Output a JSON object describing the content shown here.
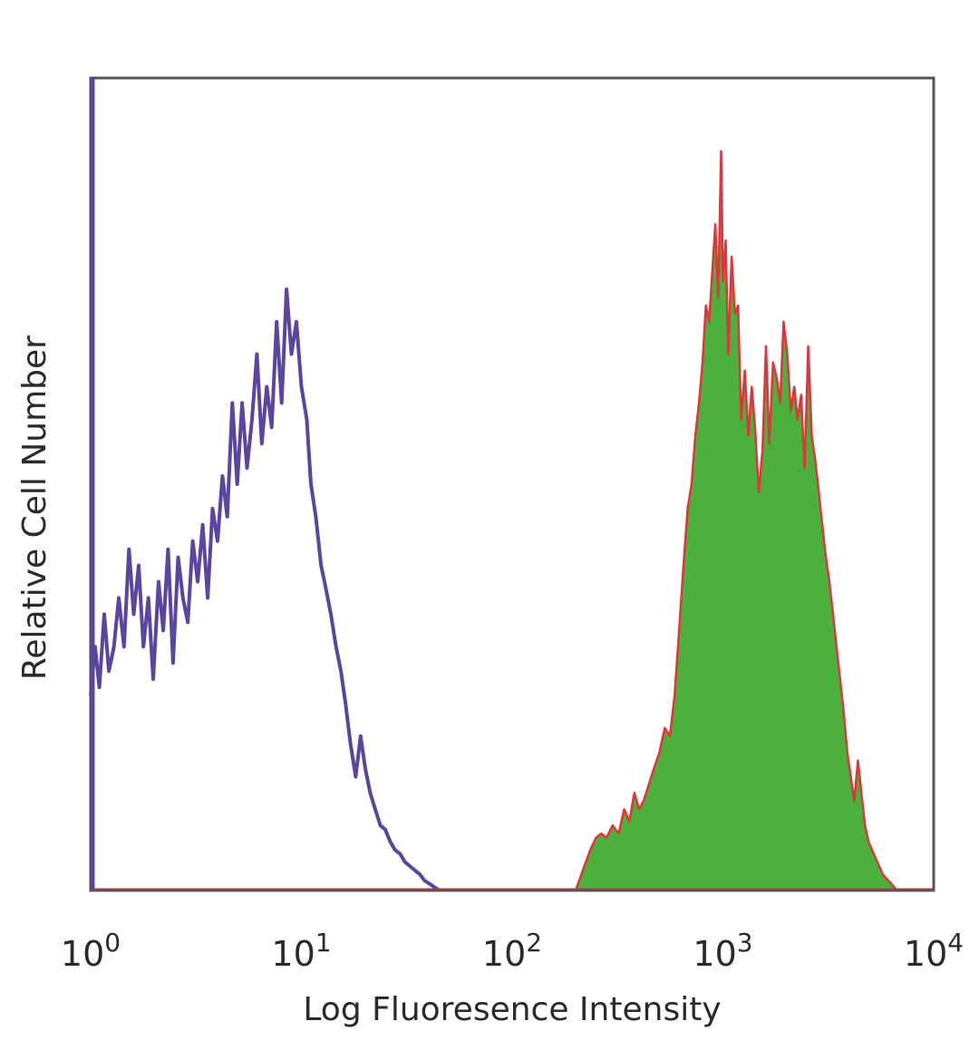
{
  "chart_data": {
    "type": "area",
    "title": "",
    "xlabel": "Log Fluoresence Intensity",
    "ylabel": "Relative Cell Number",
    "x_scale": "log",
    "xlim": [
      1,
      10000
    ],
    "ylim": [
      0,
      1
    ],
    "grid": false,
    "legend": "none",
    "x_ticks": [
      {
        "value": 1,
        "base": "10",
        "exp": "0"
      },
      {
        "value": 10,
        "base": "10",
        "exp": "1"
      },
      {
        "value": 100,
        "base": "10",
        "exp": "2"
      },
      {
        "value": 1000,
        "base": "10",
        "exp": "3"
      },
      {
        "value": 10000,
        "base": "10",
        "exp": "4"
      }
    ],
    "colors": {
      "purple_series": "#5b45a0",
      "red_series": "#e0353a",
      "green_fill": "#4bb03c",
      "axis": "#555555"
    },
    "series": [
      {
        "style": "line",
        "color": "#5b45a0",
        "x": [
          1.0,
          1.05,
          1.1,
          1.16,
          1.22,
          1.29,
          1.36,
          1.44,
          1.52,
          1.6,
          1.69,
          1.78,
          1.88,
          1.98,
          2.1,
          2.21,
          2.33,
          2.46,
          2.6,
          2.74,
          2.89,
          3.05,
          3.22,
          3.4,
          3.59,
          3.79,
          4.0,
          4.22,
          4.45,
          4.7,
          4.96,
          5.23,
          5.52,
          5.83,
          6.15,
          6.49,
          6.85,
          7.23,
          7.63,
          8.06,
          8.5,
          8.97,
          9.47,
          10.0,
          10.6,
          11.1,
          11.7,
          12.4,
          13.1,
          13.8,
          14.6,
          15.4,
          16.2,
          17.1,
          18.1,
          19.1,
          20.1,
          21.2,
          22.4,
          23.7,
          25.0,
          26.4,
          27.8,
          29.4,
          31.0,
          32.7,
          34.5,
          36.4,
          38.4,
          40.6,
          42.8,
          45.2
        ],
        "y": [
          0.24,
          0.3,
          0.25,
          0.34,
          0.27,
          0.3,
          0.36,
          0.3,
          0.42,
          0.34,
          0.4,
          0.3,
          0.36,
          0.26,
          0.38,
          0.32,
          0.42,
          0.28,
          0.41,
          0.36,
          0.33,
          0.43,
          0.38,
          0.45,
          0.36,
          0.47,
          0.43,
          0.51,
          0.46,
          0.6,
          0.5,
          0.6,
          0.52,
          0.58,
          0.66,
          0.55,
          0.62,
          0.57,
          0.7,
          0.6,
          0.74,
          0.66,
          0.7,
          0.62,
          0.58,
          0.5,
          0.46,
          0.4,
          0.37,
          0.34,
          0.3,
          0.27,
          0.23,
          0.18,
          0.14,
          0.19,
          0.15,
          0.12,
          0.1,
          0.08,
          0.075,
          0.06,
          0.05,
          0.045,
          0.035,
          0.03,
          0.025,
          0.02,
          0.012,
          0.008,
          0.004,
          0.0
        ]
      },
      {
        "style": "filled",
        "color": "#e0353a",
        "fill": "#4bb03c",
        "x": [
          200,
          210,
          220,
          235,
          250,
          265,
          280,
          300,
          320,
          340,
          360,
          380,
          400,
          420,
          445,
          470,
          500,
          530,
          560,
          590,
          620,
          650,
          680,
          710,
          740,
          770,
          800,
          830,
          860,
          890,
          920,
          950,
          980,
          1000,
          1030,
          1060,
          1100,
          1140,
          1180,
          1220,
          1270,
          1320,
          1370,
          1420,
          1480,
          1540,
          1600,
          1660,
          1730,
          1800,
          1870,
          1940,
          2020,
          2100,
          2180,
          2260,
          2350,
          2440,
          2540,
          2640,
          2740,
          2850,
          2960,
          3080,
          3200,
          3330,
          3460,
          3600,
          3740,
          3890,
          4040,
          4200,
          4370,
          4540,
          4720,
          4910,
          5100,
          5300,
          5510,
          5730,
          5960,
          6200,
          6450,
          6700,
          7000
        ],
        "y": [
          0.0,
          0.015,
          0.03,
          0.05,
          0.065,
          0.07,
          0.065,
          0.08,
          0.07,
          0.1,
          0.085,
          0.12,
          0.1,
          0.11,
          0.13,
          0.15,
          0.17,
          0.2,
          0.19,
          0.24,
          0.32,
          0.4,
          0.47,
          0.5,
          0.56,
          0.6,
          0.65,
          0.72,
          0.7,
          0.76,
          0.82,
          0.73,
          0.91,
          0.75,
          0.8,
          0.66,
          0.78,
          0.71,
          0.72,
          0.58,
          0.64,
          0.56,
          0.62,
          0.57,
          0.49,
          0.54,
          0.67,
          0.55,
          0.65,
          0.63,
          0.6,
          0.7,
          0.66,
          0.59,
          0.62,
          0.58,
          0.61,
          0.52,
          0.67,
          0.56,
          0.53,
          0.49,
          0.45,
          0.41,
          0.38,
          0.34,
          0.3,
          0.26,
          0.22,
          0.17,
          0.14,
          0.11,
          0.16,
          0.12,
          0.08,
          0.06,
          0.05,
          0.04,
          0.03,
          0.02,
          0.015,
          0.01,
          0.005,
          0.0,
          0.0
        ]
      }
    ]
  }
}
